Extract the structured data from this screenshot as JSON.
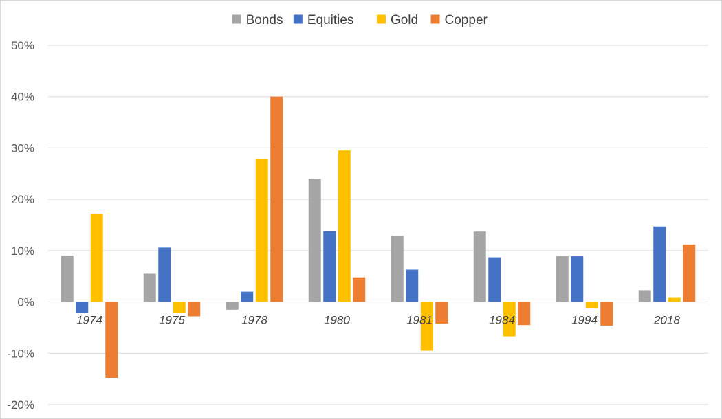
{
  "chart_data": {
    "type": "bar",
    "categories": [
      "1974",
      "1975",
      "1978",
      "1980",
      "1981",
      "1984",
      "1994",
      "2018"
    ],
    "series": [
      {
        "name": "Bonds",
        "color": "#a5a5a5",
        "values": [
          9.0,
          5.5,
          -1.5,
          24.0,
          12.9,
          13.7,
          8.9,
          2.3
        ]
      },
      {
        "name": "Equities",
        "color": "#4472c4",
        "values": [
          -2.2,
          10.6,
          2.0,
          13.8,
          6.3,
          8.7,
          8.9,
          14.7
        ]
      },
      {
        "name": "Gold",
        "color": "#ffc000",
        "values": [
          17.2,
          -2.2,
          27.8,
          29.5,
          -9.5,
          -6.7,
          -1.2,
          0.8
        ]
      },
      {
        "name": "Copper",
        "color": "#ed7d31",
        "values": [
          -14.8,
          -2.8,
          40.0,
          4.8,
          -4.2,
          -4.5,
          -4.6,
          11.2
        ]
      }
    ],
    "y_ticks": [
      "50%",
      "40%",
      "30%",
      "20%",
      "10%",
      "0%",
      "-10%",
      "-20%"
    ],
    "ylim": [
      -20,
      50
    ],
    "grid": true,
    "legend_position": "top-center"
  }
}
